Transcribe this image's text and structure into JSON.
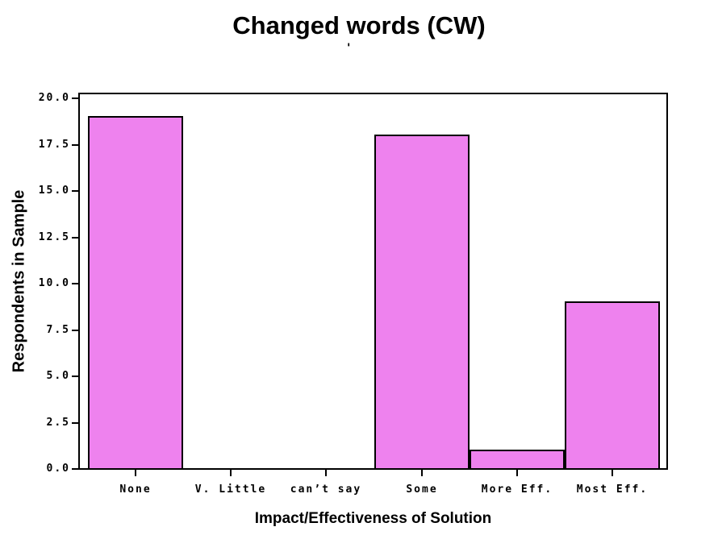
{
  "title": "Changed words (CW)",
  "subtitle_mark": "'",
  "chart_data": {
    "type": "bar",
    "title": "Changed words (CW)",
    "categories": [
      "None",
      "V. Little",
      "can’t say",
      "Some",
      "More Eff.",
      "Most Eff."
    ],
    "values": [
      19,
      0,
      0,
      18,
      1,
      9
    ],
    "xlabel": "Impact/Effectiveness of Solution",
    "ylabel": "Respondents in Sample",
    "ylim": [
      0,
      20
    ],
    "ytick_step": 2.5,
    "ytick_labels": [
      "0.0",
      "2.5",
      "5.0",
      "7.5",
      "10.0",
      "12.5",
      "15.0",
      "17.5",
      "20.0"
    ],
    "bar_color": "#ee82ee",
    "bar_border_color": "#000000",
    "grid": false,
    "legend": "none"
  }
}
